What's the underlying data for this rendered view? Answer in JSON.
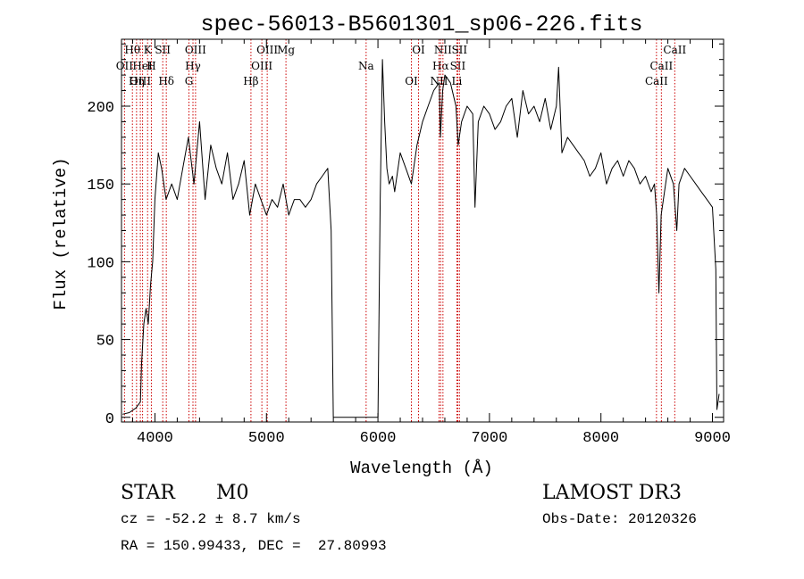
{
  "chart_data": {
    "type": "line",
    "title": "spec-56013-B5601301_sp06-226.fits",
    "xlabel": "Wavelength (Å)",
    "ylabel": "Flux (relative)",
    "xlim": [
      3700,
      9100
    ],
    "ylim": [
      -3,
      243
    ],
    "grid": false,
    "x_ticks": [
      {
        "value": 4000,
        "label": "4000"
      },
      {
        "value": 5000,
        "label": "5000"
      },
      {
        "value": 6000,
        "label": "6000"
      },
      {
        "value": 7000,
        "label": "7000"
      },
      {
        "value": 8000,
        "label": "8000"
      },
      {
        "value": 9000,
        "label": "9000"
      }
    ],
    "y_ticks": [
      {
        "value": 0,
        "label": "0"
      },
      {
        "value": 50,
        "label": "50"
      },
      {
        "value": 100,
        "label": "100"
      },
      {
        "value": 150,
        "label": "150"
      },
      {
        "value": 200,
        "label": "200"
      }
    ],
    "line_color": "#000000",
    "marker_color": "#cc0000",
    "series": [
      {
        "x": [
          3710,
          3770,
          3830,
          3870,
          3880,
          3900,
          3920,
          3940,
          3960,
          3980,
          4000,
          4030,
          4060,
          4100,
          4150,
          4200,
          4250,
          4300,
          4350,
          4400,
          4450,
          4500,
          4550,
          4600,
          4650,
          4700,
          4750,
          4800,
          4850,
          4900,
          4950,
          5000,
          5050,
          5100,
          5150,
          5200,
          5250,
          5300,
          5350,
          5400,
          5450,
          5500,
          5550,
          5580,
          5600,
          5650,
          5700,
          5800,
          5900,
          6000,
          6020,
          6040,
          6060,
          6080,
          6100,
          6130,
          6150,
          6200,
          6250,
          6300,
          6350,
          6400,
          6450,
          6500,
          6550,
          6560,
          6580,
          6600,
          6650,
          6700,
          6720,
          6750,
          6800,
          6850,
          6870,
          6900,
          6950,
          7000,
          7050,
          7100,
          7150,
          7200,
          7250,
          7300,
          7350,
          7400,
          7450,
          7500,
          7550,
          7600,
          7620,
          7650,
          7700,
          7750,
          7800,
          7850,
          7900,
          7950,
          8000,
          8050,
          8100,
          8150,
          8200,
          8250,
          8300,
          8350,
          8400,
          8450,
          8480,
          8500,
          8520,
          8540,
          8560,
          8600,
          8650,
          8680,
          8700,
          8750,
          8800,
          8850,
          8900,
          8950,
          9000,
          9030,
          9040,
          9050,
          9060
        ],
        "y": [
          2,
          3,
          6,
          10,
          35,
          60,
          70,
          60,
          85,
          100,
          140,
          170,
          160,
          140,
          150,
          140,
          160,
          180,
          150,
          190,
          140,
          175,
          160,
          150,
          170,
          140,
          150,
          165,
          130,
          150,
          140,
          130,
          140,
          135,
          150,
          130,
          140,
          140,
          135,
          140,
          150,
          155,
          160,
          120,
          0,
          0,
          0,
          0,
          0,
          0,
          140,
          230,
          190,
          160,
          150,
          155,
          145,
          170,
          160,
          150,
          175,
          190,
          200,
          210,
          215,
          180,
          210,
          220,
          215,
          200,
          175,
          190,
          200,
          195,
          135,
          190,
          200,
          195,
          185,
          190,
          200,
          205,
          180,
          210,
          195,
          200,
          190,
          205,
          185,
          200,
          225,
          170,
          180,
          175,
          170,
          165,
          155,
          160,
          170,
          150,
          160,
          165,
          155,
          165,
          160,
          150,
          155,
          145,
          150,
          130,
          80,
          130,
          140,
          160,
          150,
          120,
          150,
          160,
          155,
          150,
          145,
          140,
          135,
          95,
          5,
          10,
          15
        ]
      }
    ],
    "lines": [
      {
        "label": "Hθ",
        "x": 3798
      },
      {
        "label": "OII",
        "x": 3727
      },
      {
        "label": "OIII",
        "x": 3869
      },
      {
        "label": "K",
        "x": 3934
      },
      {
        "label": "HeI",
        "x": 3889
      },
      {
        "label": "Hη",
        "x": 3835
      },
      {
        "label": "SII",
        "x": 4070
      },
      {
        "label": "H",
        "x": 3968
      },
      {
        "label": "Hδ",
        "x": 4102
      },
      {
        "label": "OIII",
        "x": 4364
      },
      {
        "label": "Hγ",
        "x": 4341
      },
      {
        "label": "G",
        "x": 4305
      },
      {
        "label": "OIII",
        "x": 5007
      },
      {
        "label": "OIII",
        "x": 4959
      },
      {
        "label": "Hβ",
        "x": 4861
      },
      {
        "label": "Mg",
        "x": 5175
      },
      {
        "label": "Na",
        "x": 5894
      },
      {
        "label": "OI",
        "x": 6300
      },
      {
        "label": "OI",
        "x": 6364
      },
      {
        "label": "Hα",
        "x": 6563
      },
      {
        "label": "NII",
        "x": 6548
      },
      {
        "label": "NII",
        "x": 6583
      },
      {
        "label": "SII",
        "x": 6716
      },
      {
        "label": "Li",
        "x": 6708
      },
      {
        "label": "SII",
        "x": 6731
      },
      {
        "label": "CaII",
        "x": 8542
      },
      {
        "label": "CaII",
        "x": 8498
      },
      {
        "label": "CaII",
        "x": 8662
      }
    ]
  },
  "info": {
    "class_label": "STAR",
    "subclass_label": "M0",
    "survey": "LAMOST DR3",
    "cz": "cz = -52.2 ± 8.7 km/s",
    "obs_date": "Obs-Date: 20120326",
    "radec": "RA = 150.99433, DEC =  27.80993"
  }
}
